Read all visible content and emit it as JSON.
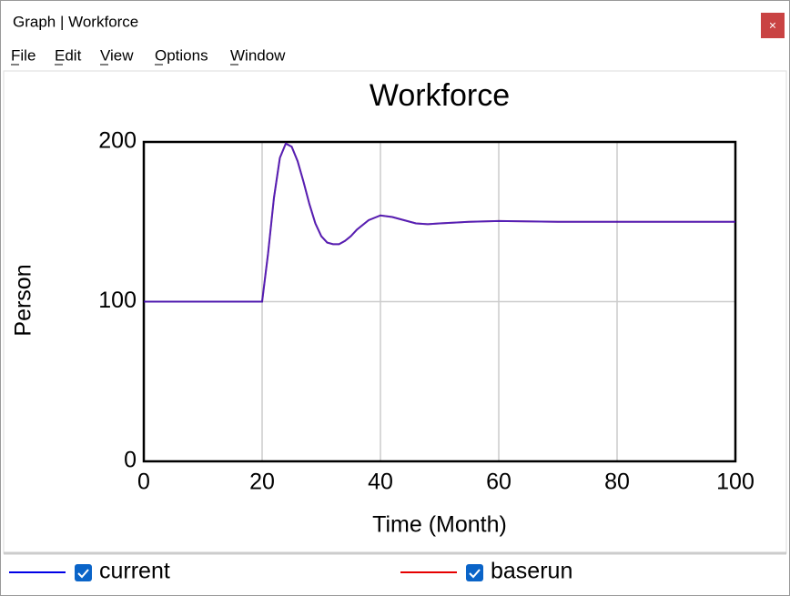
{
  "window": {
    "title": "Graph | Workforce",
    "close": "×",
    "menu": [
      "File",
      "Edit",
      "View",
      "Options",
      "Window"
    ]
  },
  "chart_data": {
    "type": "line",
    "title": "Workforce",
    "x_label": "Time (Month)",
    "y_label": "Person",
    "x": [
      0,
      20,
      21,
      22,
      23,
      24,
      25,
      26,
      27,
      28,
      29,
      30,
      31,
      32,
      33,
      34,
      35,
      36,
      38,
      40,
      42,
      44,
      46,
      48,
      50,
      55,
      60,
      70,
      80,
      90,
      100
    ],
    "series": [
      {
        "name": "current",
        "color": "#0000e6",
        "values": [
          100,
          100,
          130,
          165,
          190,
          199,
          197,
          188,
          175,
          161,
          149,
          141,
          137,
          136,
          136,
          138,
          141,
          145,
          151,
          154,
          153,
          151,
          149,
          148.5,
          149,
          150,
          150.5,
          150,
          150,
          150,
          150
        ]
      },
      {
        "name": "baserun",
        "color": "#e60000",
        "values": [
          100,
          100,
          130,
          165,
          190,
          199,
          197,
          188,
          175,
          161,
          149,
          141,
          137,
          136,
          136,
          138,
          141,
          145,
          151,
          154,
          153,
          151,
          149,
          148.5,
          149,
          150,
          150.5,
          150,
          150,
          150,
          150
        ]
      }
    ],
    "xlim": [
      0,
      100
    ],
    "ylim": [
      0,
      200
    ],
    "xticks": [
      0,
      20,
      40,
      60,
      80,
      100
    ],
    "yticks": [
      0,
      100,
      200
    ],
    "grid": true
  }
}
